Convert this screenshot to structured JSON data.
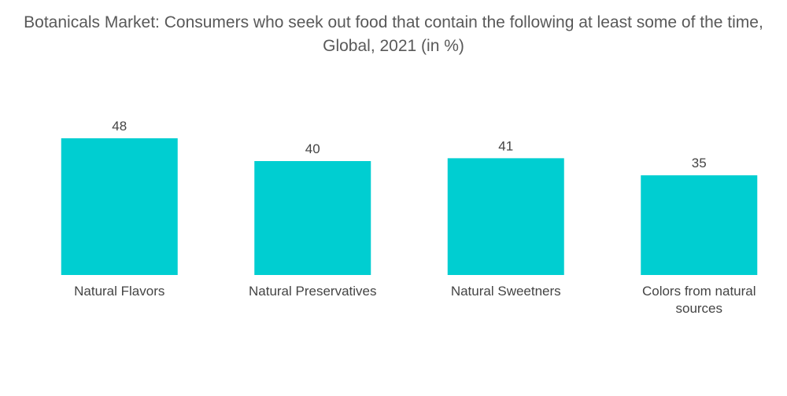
{
  "chart_data": {
    "type": "bar",
    "title": "Botanicals Market: Consumers who seek out food that contain the following at least some of the time, Global, 2021 (in %)",
    "categories": [
      "Natural Flavors",
      "Natural Preservatives",
      "Natural Sweetners",
      "Colors from natural sources"
    ],
    "values": [
      48,
      40,
      41,
      35
    ],
    "xlabel": "",
    "ylabel": "",
    "ylim": [
      0,
      50
    ],
    "grid": false,
    "legend": "none",
    "bar_color": "#00CED1"
  }
}
